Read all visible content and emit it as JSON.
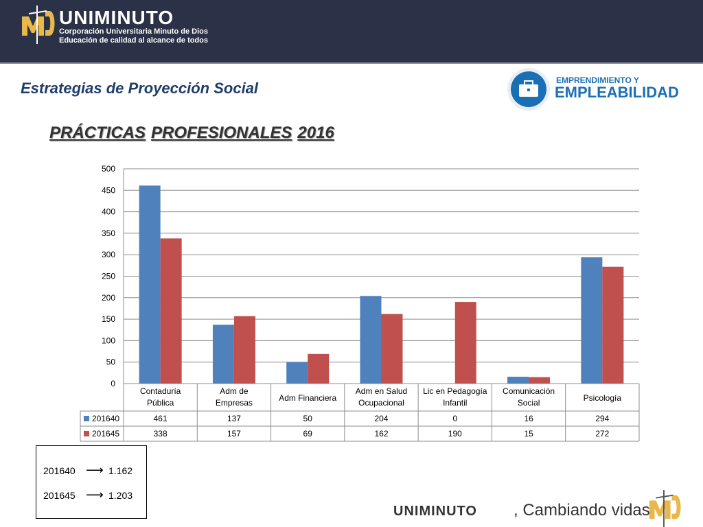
{
  "header": {
    "logo_name": "UNIMINUTO",
    "logo_tagline_1": "Corporación Universitaria Minuto de Dios",
    "logo_tagline_2": "Educación de calidad al alcance de todos"
  },
  "section_title": "Estrategias de Proyección Social",
  "badge": {
    "line1": "EMPRENDIMIENTO Y",
    "line2": "EMPLEABILIDAD",
    "icon": "briefcase-icon"
  },
  "page_title": [
    "PRÁCTICAS",
    "PROFESIONALES",
    "2016"
  ],
  "colors": {
    "series1": "#4f81bd",
    "series2": "#c0504d",
    "header_bg": "#2b3247",
    "logo_gold": "#e8b84a",
    "brand_blue": "#1a6fb5"
  },
  "chart_data": {
    "type": "bar",
    "categories": [
      [
        "Contaduría",
        "Pública"
      ],
      [
        "Adm de",
        "Empresas"
      ],
      [
        "Adm Financiera"
      ],
      [
        "Adm en Salud",
        "Ocupacional"
      ],
      [
        "Lic en Pedagogía",
        "Infantil"
      ],
      [
        "Comunicación",
        "Social"
      ],
      [
        "Psicología"
      ]
    ],
    "series": [
      {
        "name": "201640",
        "values": [
          461,
          137,
          50,
          204,
          0,
          16,
          294
        ]
      },
      {
        "name": "201645",
        "values": [
          338,
          157,
          69,
          162,
          190,
          15,
          272
        ]
      }
    ],
    "ylim": [
      0,
      500
    ],
    "yticks": [
      0,
      50,
      100,
      150,
      200,
      250,
      300,
      350,
      400,
      450,
      500
    ],
    "grid": true,
    "legend": "data-table"
  },
  "totals": [
    {
      "code": "201640",
      "value": "1.162"
    },
    {
      "code": "201645",
      "value": "1.203"
    }
  ],
  "footer": {
    "name": "UNIMINUTO",
    "slogan": ", Cambiando vidas"
  }
}
